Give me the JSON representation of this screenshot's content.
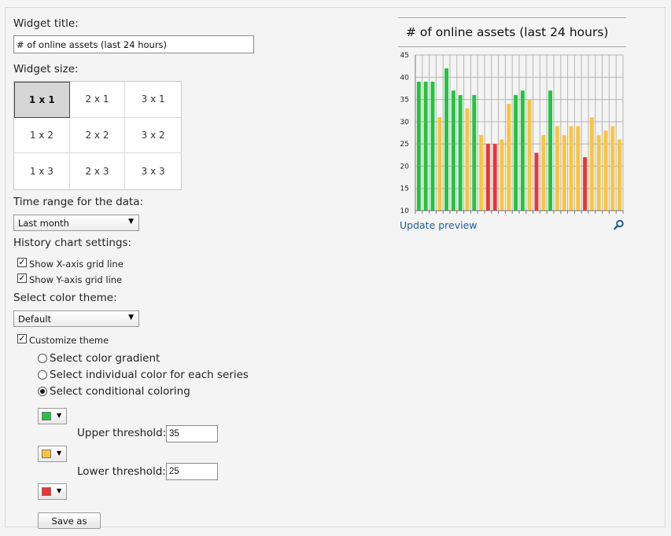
{
  "form": {
    "widget_title_label": "Widget title:",
    "widget_title_value": "# of online assets (last 24 hours)",
    "widget_size_label": "Widget size:",
    "sizes": [
      "1 x 1",
      "2 x 1",
      "3 x 1",
      "1 x 2",
      "2 x 2",
      "3 x 2",
      "1 x 3",
      "2 x 3",
      "3 x 3"
    ],
    "selected_size": "1 x 1",
    "time_range_label": "Time range for the data:",
    "time_range_value": "Last month",
    "history_label": "History chart settings:",
    "show_x_grid_label": "Show X-axis grid line",
    "show_x_grid": true,
    "show_y_grid_label": "Show Y-axis grid line",
    "show_y_grid": true,
    "color_theme_label": "Select color theme:",
    "color_theme_value": "Default",
    "customize_label": "Customize theme",
    "customize": true,
    "radio_gradient": "Select color gradient",
    "radio_individual": "Select individual color for each series",
    "radio_conditional": "Select conditional coloring",
    "selected_radio": "conditional",
    "upper_label": "Upper threshold:",
    "upper_value": "35",
    "lower_label": "Lower threshold:",
    "lower_value": "25",
    "save_label": "Save as"
  },
  "colors": {
    "high": "#22c43f",
    "mid": "#f9c53e",
    "low": "#e83535",
    "grid": "#b5b5b5",
    "link": "#1f5c9a"
  },
  "preview": {
    "title": "# of online assets (last 24 hours)",
    "update_link": "Update preview",
    "zoom_icon": "magnifier-icon"
  },
  "chart_data": {
    "type": "bar",
    "title": "# of online assets (last 24 hours)",
    "ylim": [
      10,
      45
    ],
    "yticks": [
      10,
      15,
      20,
      25,
      30,
      35,
      40,
      45
    ],
    "values": [
      39,
      39,
      39,
      31,
      42,
      37,
      36,
      33,
      36,
      27,
      25,
      25,
      26,
      34,
      36,
      37,
      35,
      23,
      27,
      37,
      29,
      27,
      29,
      29,
      22,
      31,
      27,
      28,
      29,
      26
    ],
    "thresholds": {
      "upper": 35,
      "lower": 25
    },
    "grid": {
      "x": true,
      "y": true
    }
  }
}
